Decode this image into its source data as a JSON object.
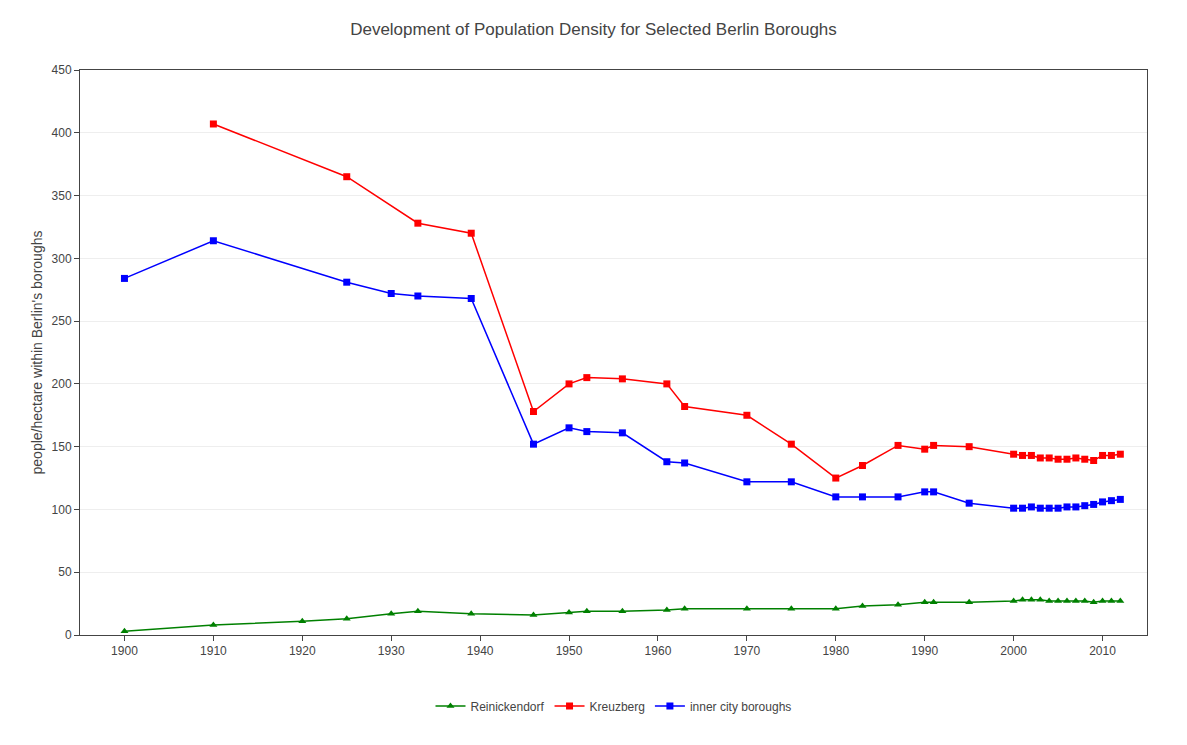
{
  "chart_data": {
    "type": "line",
    "title": "Development of Population Density for Selected Berlin Boroughs",
    "ylabel": "people/hectare within Berlin's boroughs",
    "xlim": [
      1895,
      2015
    ],
    "xticks": [
      1900,
      1910,
      1920,
      1930,
      1940,
      1950,
      1960,
      1970,
      1980,
      1990,
      2000,
      2010
    ],
    "ylim": [
      0,
      450
    ],
    "yticks": [
      0,
      50,
      100,
      150,
      200,
      250,
      300,
      350,
      400,
      450
    ],
    "grid": "y",
    "legend": "bottom",
    "series": [
      {
        "name": "Reinickendorf",
        "color": "#008000",
        "marker": "triangle",
        "x": [
          1900,
          1910,
          1920,
          1925,
          1930,
          1933,
          1939,
          1946,
          1950,
          1952,
          1956,
          1961,
          1963,
          1970,
          1975,
          1980,
          1983,
          1987,
          1990,
          1991,
          1995,
          2000,
          2001,
          2002,
          2003,
          2004,
          2005,
          2006,
          2007,
          2008,
          2009,
          2010,
          2011,
          2012
        ],
        "values": [
          3,
          8,
          11,
          13,
          17,
          19,
          17,
          16,
          18,
          19,
          19,
          20,
          21,
          21,
          21,
          21,
          23,
          24,
          26,
          26,
          26,
          27,
          28,
          28,
          28,
          27,
          27,
          27,
          27,
          27,
          26,
          27,
          27,
          27
        ]
      },
      {
        "name": "Kreuzberg",
        "color": "#ff0000",
        "marker": "square",
        "x": [
          1910,
          1925,
          1933,
          1939,
          1946,
          1950,
          1952,
          1956,
          1961,
          1963,
          1970,
          1975,
          1980,
          1983,
          1987,
          1990,
          1991,
          1995,
          2000,
          2001,
          2002,
          2003,
          2004,
          2005,
          2006,
          2007,
          2008,
          2009,
          2010,
          2011,
          2012
        ],
        "values": [
          407,
          365,
          328,
          320,
          178,
          200,
          205,
          204,
          200,
          182,
          175,
          152,
          125,
          135,
          151,
          148,
          151,
          150,
          144,
          143,
          143,
          141,
          141,
          140,
          140,
          141,
          140,
          139,
          143,
          143,
          144
        ]
      },
      {
        "name": "inner city boroughs",
        "color": "#0000ff",
        "marker": "square",
        "x": [
          1900,
          1910,
          1925,
          1930,
          1933,
          1939,
          1946,
          1950,
          1952,
          1956,
          1961,
          1963,
          1970,
          1975,
          1980,
          1983,
          1987,
          1990,
          1991,
          1995,
          2000,
          2001,
          2002,
          2003,
          2004,
          2005,
          2006,
          2007,
          2008,
          2009,
          2010,
          2011,
          2012
        ],
        "values": [
          284,
          314,
          281,
          272,
          270,
          268,
          152,
          165,
          162,
          161,
          138,
          137,
          122,
          122,
          110,
          110,
          110,
          114,
          114,
          105,
          101,
          101,
          102,
          101,
          101,
          101,
          102,
          102,
          103,
          104,
          106,
          107,
          108
        ]
      }
    ]
  }
}
